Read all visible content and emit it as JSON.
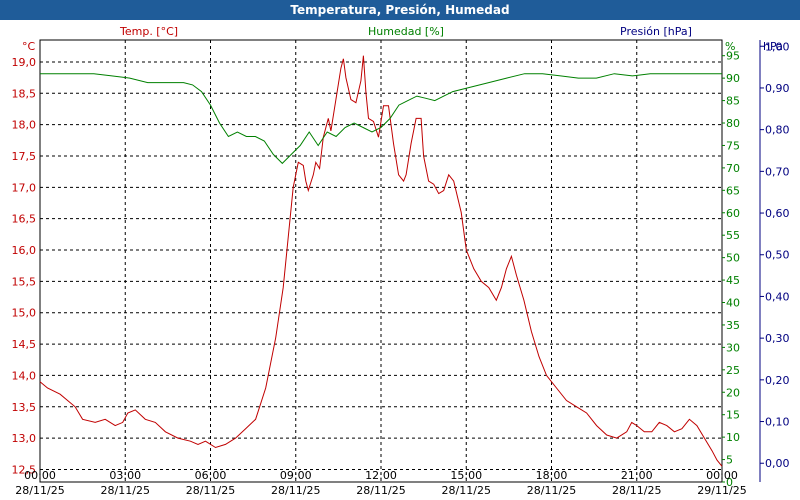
{
  "window": {
    "title": "Temperatura, Presión, Humedad"
  },
  "colors": {
    "temp": "#c00000",
    "hum": "#008000",
    "pres": "#000080",
    "titlebar": "#1f5c99"
  },
  "chart_data": {
    "type": "line",
    "title": "Temperatura, Presión, Humedad",
    "grid": true,
    "x_ticks": [
      {
        "t": "00:00",
        "d": "28/11/25"
      },
      {
        "t": "03:00",
        "d": "28/11/25"
      },
      {
        "t": "06:00",
        "d": "28/11/25"
      },
      {
        "t": "09:00",
        "d": "28/11/25"
      },
      {
        "t": "12:00",
        "d": "28/11/25"
      },
      {
        "t": "15:00",
        "d": "28/11/25"
      },
      {
        "t": "18:00",
        "d": "28/11/25"
      },
      {
        "t": "21:00",
        "d": "28/11/25"
      },
      {
        "t": "00:00",
        "d": "29/11/25"
      }
    ],
    "x_range_hours": [
      0,
      24
    ],
    "axes": {
      "temp": {
        "label": "Temp. [°C]",
        "unit": "°C",
        "range": [
          12.3,
          19.35
        ],
        "ticks": [
          "12,5",
          "13,0",
          "13,5",
          "14,0",
          "14,5",
          "15,0",
          "15,5",
          "16,0",
          "16,5",
          "17,0",
          "17,5",
          "18,0",
          "18,5",
          "19,0"
        ]
      },
      "hum": {
        "label": "Humedad [%]",
        "unit": "%",
        "range": [
          0,
          98.5
        ],
        "ticks": [
          "0",
          "5",
          "10",
          "15",
          "20",
          "25",
          "30",
          "35",
          "40",
          "45",
          "50",
          "55",
          "60",
          "65",
          "70",
          "75",
          "80",
          "85",
          "90",
          "95"
        ]
      },
      "pres": {
        "label": "Presión [hPa]",
        "unit": "hPa",
        "range": [
          -0.045,
          1.015
        ],
        "ticks": [
          "0,00",
          "0,10",
          "0,20",
          "0,30",
          "0,40",
          "0,50",
          "0,60",
          "0,70",
          "0,80",
          "0,90",
          "1,00"
        ]
      }
    },
    "series": [
      {
        "name": "Temp. [°C]",
        "axis": "temp",
        "points": [
          [
            0,
            13.9
          ],
          [
            0.3,
            13.8
          ],
          [
            0.8,
            13.7
          ],
          [
            1.1,
            13.6
          ],
          [
            1.4,
            13.5
          ],
          [
            1.7,
            13.3
          ],
          [
            2.2,
            13.25
          ],
          [
            2.6,
            13.3
          ],
          [
            3.0,
            13.2
          ],
          [
            3.3,
            13.25
          ],
          [
            3.5,
            13.4
          ],
          [
            3.8,
            13.45
          ],
          [
            4.2,
            13.3
          ],
          [
            4.6,
            13.25
          ],
          [
            5.0,
            13.1
          ],
          [
            5.5,
            13.0
          ],
          [
            6.0,
            12.95
          ],
          [
            6.3,
            12.9
          ],
          [
            6.6,
            12.95
          ],
          [
            7.0,
            12.85
          ],
          [
            7.4,
            12.9
          ],
          [
            7.8,
            13.0
          ],
          [
            8.2,
            13.15
          ],
          [
            8.6,
            13.3
          ],
          [
            9.0,
            13.8
          ],
          [
            9.4,
            14.6
          ],
          [
            9.7,
            15.4
          ],
          [
            9.9,
            16.2
          ],
          [
            10.1,
            17.0
          ],
          [
            10.3,
            17.4
          ],
          [
            10.5,
            17.35
          ],
          [
            10.6,
            17.1
          ],
          [
            10.7,
            16.95
          ],
          [
            10.9,
            17.2
          ],
          [
            11.0,
            17.4
          ],
          [
            11.15,
            17.3
          ],
          [
            11.3,
            17.8
          ],
          [
            11.5,
            18.1
          ],
          [
            11.6,
            17.9
          ],
          [
            11.8,
            18.4
          ],
          [
            12.0,
            18.9
          ],
          [
            12.1,
            19.05
          ],
          [
            12.2,
            18.75
          ],
          [
            12.4,
            18.4
          ],
          [
            12.6,
            18.35
          ],
          [
            12.8,
            18.7
          ],
          [
            12.9,
            19.1
          ],
          [
            13.0,
            18.5
          ],
          [
            13.1,
            18.1
          ],
          [
            13.3,
            18.05
          ],
          [
            13.5,
            17.8
          ],
          [
            13.7,
            18.3
          ],
          [
            13.9,
            18.3
          ],
          [
            14.1,
            17.7
          ],
          [
            14.3,
            17.2
          ],
          [
            14.5,
            17.1
          ],
          [
            14.6,
            17.2
          ],
          [
            14.8,
            17.7
          ],
          [
            15.0,
            18.1
          ],
          [
            15.2,
            18.1
          ],
          [
            15.3,
            17.5
          ],
          [
            15.5,
            17.1
          ],
          [
            15.7,
            17.05
          ],
          [
            15.9,
            16.9
          ],
          [
            16.1,
            16.95
          ],
          [
            16.3,
            17.2
          ],
          [
            16.5,
            17.1
          ],
          [
            16.8,
            16.6
          ],
          [
            17.0,
            16.0
          ],
          [
            17.3,
            15.7
          ],
          [
            17.6,
            15.5
          ],
          [
            17.9,
            15.4
          ],
          [
            18.2,
            15.2
          ],
          [
            18.4,
            15.4
          ],
          [
            18.6,
            15.7
          ],
          [
            18.8,
            15.9
          ],
          [
            19.0,
            15.6
          ],
          [
            19.3,
            15.2
          ],
          [
            19.6,
            14.7
          ],
          [
            19.9,
            14.3
          ],
          [
            20.2,
            14.0
          ],
          [
            20.6,
            13.8
          ],
          [
            21.0,
            13.6
          ],
          [
            21.4,
            13.5
          ],
          [
            21.8,
            13.4
          ],
          [
            22.2,
            13.2
          ],
          [
            22.6,
            13.05
          ],
          [
            23.0,
            13.0
          ],
          [
            23.4,
            13.1
          ],
          [
            23.6,
            13.25
          ],
          [
            23.8,
            13.2
          ],
          [
            24.1,
            13.1
          ],
          [
            24.4,
            13.1
          ],
          [
            24.7,
            13.25
          ],
          [
            25.0,
            13.2
          ],
          [
            25.3,
            13.1
          ],
          [
            25.6,
            13.15
          ],
          [
            25.9,
            13.3
          ],
          [
            26.2,
            13.2
          ],
          [
            26.5,
            13.0
          ],
          [
            26.8,
            12.8
          ],
          [
            27.0,
            12.65
          ],
          [
            27.2,
            12.55
          ]
        ]
      },
      {
        "name": "Humedad [%]",
        "axis": "hum",
        "points": [
          [
            0,
            91
          ],
          [
            1,
            91
          ],
          [
            2,
            91
          ],
          [
            3,
            91
          ],
          [
            4,
            90.5
          ],
          [
            5,
            90
          ],
          [
            6,
            89
          ],
          [
            7,
            89
          ],
          [
            8,
            89
          ],
          [
            8.5,
            88.5
          ],
          [
            9,
            87
          ],
          [
            9.5,
            84
          ],
          [
            10,
            80
          ],
          [
            10.5,
            77
          ],
          [
            11,
            78
          ],
          [
            11.5,
            77
          ],
          [
            12,
            77
          ],
          [
            12.5,
            76
          ],
          [
            13,
            73
          ],
          [
            13.5,
            71
          ],
          [
            14,
            73
          ],
          [
            14.5,
            75
          ],
          [
            15,
            78
          ],
          [
            15.5,
            75
          ],
          [
            16,
            78
          ],
          [
            16.5,
            77
          ],
          [
            17,
            79
          ],
          [
            17.5,
            80
          ],
          [
            18,
            79
          ],
          [
            18.5,
            78
          ],
          [
            19,
            79
          ],
          [
            19.5,
            81
          ],
          [
            20,
            84
          ],
          [
            20.5,
            85
          ],
          [
            21,
            86
          ],
          [
            21.5,
            85.5
          ],
          [
            22,
            85
          ],
          [
            22.5,
            86
          ],
          [
            23,
            87
          ],
          [
            24,
            88
          ],
          [
            25,
            89
          ],
          [
            26,
            90
          ],
          [
            27,
            91
          ],
          [
            28,
            91
          ],
          [
            29,
            90.5
          ],
          [
            30,
            90
          ],
          [
            31,
            90
          ],
          [
            32,
            91
          ],
          [
            33,
            90.5
          ],
          [
            34,
            91
          ],
          [
            35,
            91
          ],
          [
            36,
            91
          ],
          [
            37,
            91
          ],
          [
            38,
            91
          ]
        ]
      }
    ]
  }
}
